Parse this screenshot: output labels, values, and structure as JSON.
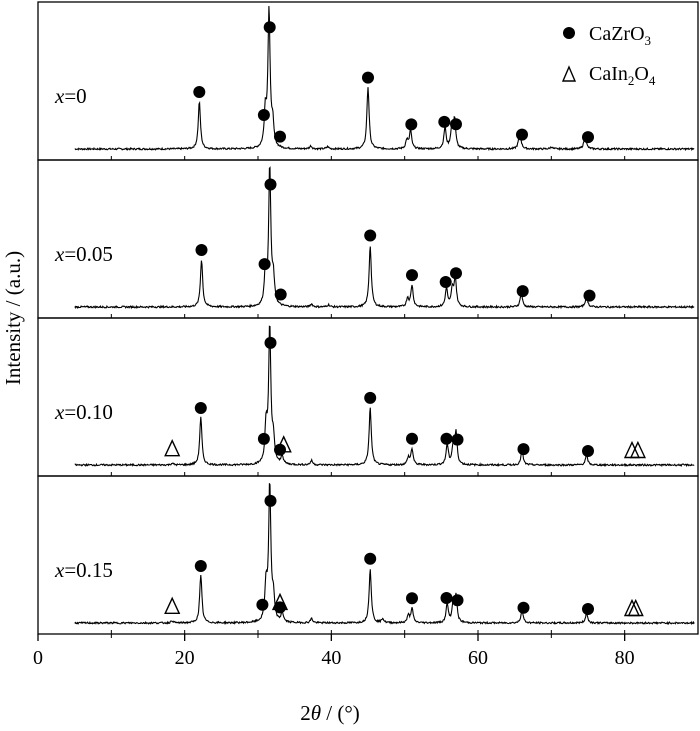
{
  "chart_data": {
    "type": "line",
    "xlabel": {
      "italic": "θ",
      "prefix": "2",
      "suffix": " / (°)"
    },
    "ylabel": "Intensity / (a.u.)",
    "xlim": [
      0,
      90
    ],
    "x_ticks": [
      0,
      20,
      40,
      60,
      80
    ],
    "x_tick_labels": [
      "0",
      "20",
      "40",
      "60",
      "80"
    ],
    "legend": {
      "position": "top-right",
      "entries": [
        {
          "marker": "filled-circle",
          "main": "CaZrO",
          "sub": "3",
          "rest": "",
          "sub2": ""
        },
        {
          "marker": "open-triangle",
          "main": "CaIn",
          "sub": "2",
          "rest": "O",
          "sub2": "4"
        }
      ]
    },
    "series": [
      {
        "name": "x=0",
        "label_var": "x",
        "label_val": "=0",
        "peaks": [
          {
            "x": 22.0,
            "h": 0.33
          },
          {
            "x": 31.0,
            "h": 0.24
          },
          {
            "x": 31.5,
            "h": 0.96
          },
          {
            "x": 32.0,
            "h": 0.16
          },
          {
            "x": 45.0,
            "h": 0.43
          },
          {
            "x": 50.3,
            "h": 0.06
          },
          {
            "x": 50.8,
            "h": 0.13
          },
          {
            "x": 55.5,
            "h": 0.15
          },
          {
            "x": 56.4,
            "h": 0.12
          },
          {
            "x": 56.8,
            "h": 0.21
          },
          {
            "x": 65.7,
            "h": 0.13
          },
          {
            "x": 74.6,
            "h": 0.1
          },
          {
            "x": 37.2,
            "h": 0.02
          },
          {
            "x": 39.5,
            "h": 0.015
          },
          {
            "x": 70.0,
            "h": 0.015
          }
        ],
        "circles": [
          22.0,
          30.8,
          31.6,
          33.0,
          45.0,
          50.9,
          55.4,
          57.0,
          66.0,
          75.0
        ],
        "triangles": []
      },
      {
        "name": "x=0.05",
        "label_var": "x",
        "label_val": "=0.05",
        "peaks": [
          {
            "x": 22.3,
            "h": 0.33
          },
          {
            "x": 31.0,
            "h": 0.22
          },
          {
            "x": 31.6,
            "h": 0.97
          },
          {
            "x": 32.1,
            "h": 0.18
          },
          {
            "x": 45.3,
            "h": 0.43
          },
          {
            "x": 50.4,
            "h": 0.06
          },
          {
            "x": 51.0,
            "h": 0.15
          },
          {
            "x": 55.7,
            "h": 0.13
          },
          {
            "x": 56.5,
            "h": 0.12
          },
          {
            "x": 56.9,
            "h": 0.2
          },
          {
            "x": 65.9,
            "h": 0.1
          },
          {
            "x": 74.8,
            "h": 0.08
          },
          {
            "x": 37.3,
            "h": 0.02
          },
          {
            "x": 39.6,
            "h": 0.015
          }
        ],
        "circles": [
          22.3,
          30.9,
          31.7,
          33.1,
          45.3,
          51.0,
          55.6,
          57.0,
          66.1,
          75.2
        ],
        "triangles": []
      },
      {
        "name": "x=0.10",
        "label_var": "x",
        "label_val": "=0.10",
        "peaks": [
          {
            "x": 22.2,
            "h": 0.33
          },
          {
            "x": 31.1,
            "h": 0.25
          },
          {
            "x": 31.6,
            "h": 0.96
          },
          {
            "x": 32.1,
            "h": 0.16
          },
          {
            "x": 33.3,
            "h": 0.06
          },
          {
            "x": 45.3,
            "h": 0.4
          },
          {
            "x": 50.5,
            "h": 0.05
          },
          {
            "x": 51.0,
            "h": 0.11
          },
          {
            "x": 55.8,
            "h": 0.14
          },
          {
            "x": 56.6,
            "h": 0.12
          },
          {
            "x": 57.0,
            "h": 0.22
          },
          {
            "x": 66.0,
            "h": 0.1
          },
          {
            "x": 74.8,
            "h": 0.07
          },
          {
            "x": 37.3,
            "h": 0.03
          },
          {
            "x": 18.3,
            "h": 0.012
          }
        ],
        "circles": [
          22.2,
          30.8,
          31.7,
          33.0,
          45.3,
          51.0,
          55.7,
          57.2,
          66.2,
          75.0
        ],
        "triangles": [
          18.3,
          33.5,
          81.0,
          81.8
        ]
      },
      {
        "name": "x=0.15",
        "label_var": "x",
        "label_val": "=0.15",
        "peaks": [
          {
            "x": 22.2,
            "h": 0.33
          },
          {
            "x": 31.1,
            "h": 0.25
          },
          {
            "x": 31.6,
            "h": 0.96
          },
          {
            "x": 32.1,
            "h": 0.16
          },
          {
            "x": 33.3,
            "h": 0.07
          },
          {
            "x": 45.3,
            "h": 0.38
          },
          {
            "x": 50.5,
            "h": 0.05
          },
          {
            "x": 51.0,
            "h": 0.1
          },
          {
            "x": 55.8,
            "h": 0.13
          },
          {
            "x": 56.6,
            "h": 0.12
          },
          {
            "x": 57.0,
            "h": 0.18
          },
          {
            "x": 66.0,
            "h": 0.09
          },
          {
            "x": 74.8,
            "h": 0.07
          },
          {
            "x": 37.3,
            "h": 0.03
          },
          {
            "x": 18.3,
            "h": 0.015
          },
          {
            "x": 47.0,
            "h": 0.03
          }
        ],
        "circles": [
          22.2,
          30.6,
          31.7,
          33.0,
          45.3,
          51.0,
          55.7,
          57.2,
          66.2,
          75.0
        ],
        "triangles": [
          18.3,
          33.0,
          81.0,
          81.5
        ]
      }
    ]
  }
}
